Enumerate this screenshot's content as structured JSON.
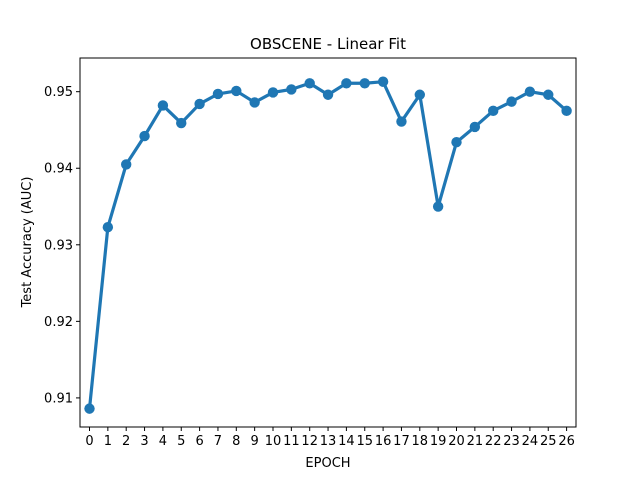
{
  "chart_data": {
    "type": "line",
    "title": "OBSCENE - Linear Fit",
    "xlabel": "EPOCH",
    "ylabel": "Test Accuracy (AUC)",
    "categories": [
      "0",
      "1",
      "2",
      "3",
      "4",
      "5",
      "6",
      "7",
      "8",
      "9",
      "10",
      "11",
      "12",
      "13",
      "14",
      "15",
      "16",
      "17",
      "18",
      "19",
      "20",
      "21",
      "22",
      "23",
      "24",
      "25",
      "26"
    ],
    "values": [
      0.9086,
      0.9323,
      0.9405,
      0.9442,
      0.9482,
      0.9459,
      0.9484,
      0.9497,
      0.9501,
      0.9486,
      0.9499,
      0.9503,
      0.9511,
      0.9496,
      0.9511,
      0.9511,
      0.9513,
      0.9461,
      0.9496,
      0.935,
      0.9434,
      0.9454,
      0.9475,
      0.9487,
      0.95,
      0.9496,
      0.9475
    ],
    "ylim": [
      0.9062,
      0.9544
    ],
    "yticks": [
      "0.91",
      "0.92",
      "0.93",
      "0.94",
      "0.95"
    ],
    "color": "#1f77b4",
    "grid": false
  }
}
